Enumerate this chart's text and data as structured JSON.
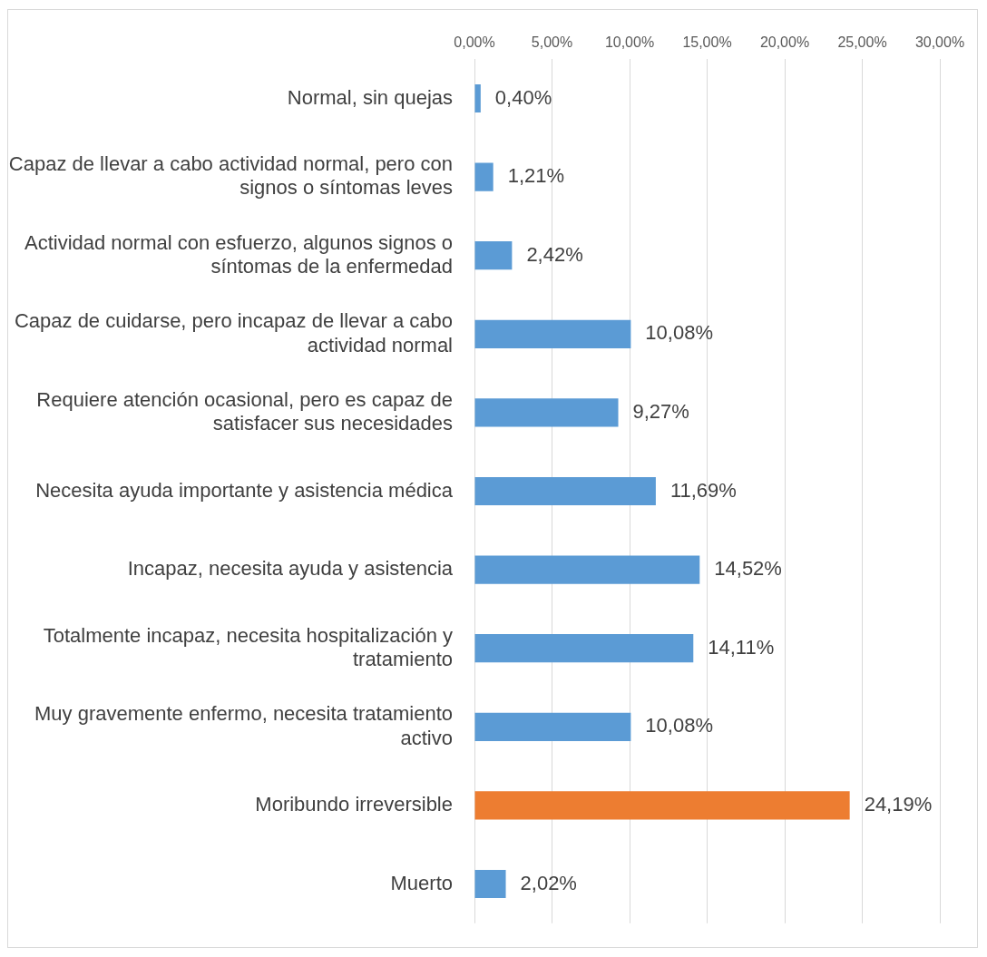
{
  "chart_data": {
    "type": "bar",
    "orientation": "horizontal",
    "categories": [
      "Normal, sin quejas",
      "Capaz de llevar a cabo actividad normal, pero con signos o síntomas leves",
      "Actividad normal con esfuerzo, algunos signos o síntomas de la enfermedad",
      "Capaz de cuidarse, pero incapaz de llevar a cabo actividad normal",
      "Requiere atención ocasional, pero es capaz de satisfacer sus necesidades",
      "Necesita ayuda importante y asistencia médica",
      "Incapaz, necesita ayuda y asistencia",
      "Totalmente incapaz, necesita hospitalización y tratamiento",
      "Muy gravemente enfermo, necesita tratamiento activo",
      "Moribundo irreversible",
      "Muerto"
    ],
    "values": [
      0.4,
      1.21,
      2.42,
      10.08,
      9.27,
      11.69,
      14.52,
      14.11,
      10.08,
      24.19,
      2.02
    ],
    "colors": [
      "#5b9bd5",
      "#5b9bd5",
      "#5b9bd5",
      "#5b9bd5",
      "#5b9bd5",
      "#5b9bd5",
      "#5b9bd5",
      "#5b9bd5",
      "#5b9bd5",
      "#ed7d31",
      "#5b9bd5"
    ],
    "value_labels": [
      "0,40%",
      "1,21%",
      "2,42%",
      "10,08%",
      "9,27%",
      "11,69%",
      "14,52%",
      "14,11%",
      "10,08%",
      "24,19%",
      "2,02%"
    ],
    "xlim": [
      0,
      30
    ],
    "xticks": [
      {
        "value": 0,
        "label": "0,00%"
      },
      {
        "value": 5,
        "label": "5,00%"
      },
      {
        "value": 10,
        "label": "10,00%"
      },
      {
        "value": 15,
        "label": "15,00%"
      },
      {
        "value": 20,
        "label": "20,00%"
      },
      {
        "value": 25,
        "label": "25,00%"
      },
      {
        "value": 30,
        "label": "30,00%"
      }
    ],
    "grid": "x",
    "legend": false
  }
}
